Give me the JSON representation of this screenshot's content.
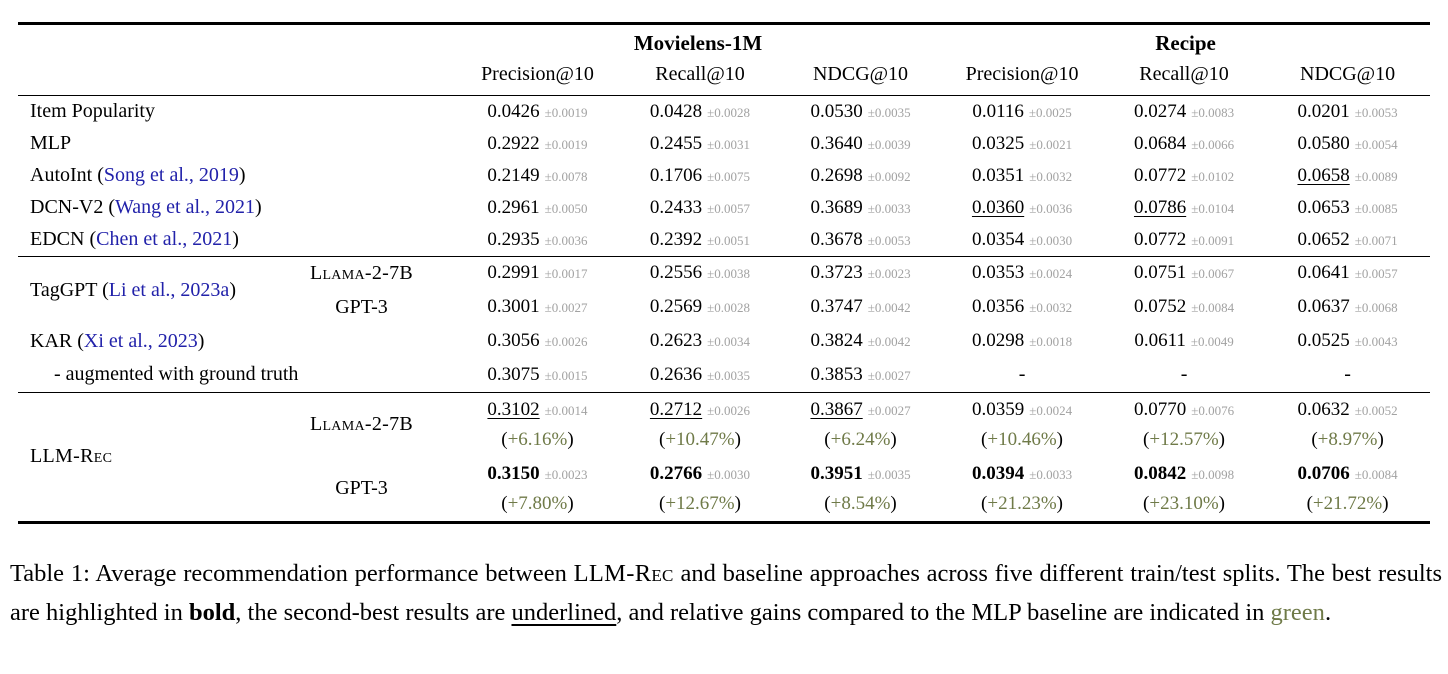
{
  "colors": {
    "citation_blue": "#2222aa",
    "gain_green": "#6f7a48",
    "stddev_gray": "#a2a2a2"
  },
  "table": {
    "dataset_groups": [
      {
        "label": "Movielens-1M",
        "span": 3
      },
      {
        "label": "Recipe",
        "span": 3
      }
    ],
    "metric_headers": [
      "Precision@10",
      "Recall@10",
      "NDCG@10",
      "Precision@10",
      "Recall@10",
      "NDCG@10"
    ],
    "blocks": [
      {
        "rows": [
          {
            "label": [
              {
                "t": "Item Popularity"
              }
            ],
            "cells": [
              {
                "v": "0.0426",
                "pm": "±0.0019"
              },
              {
                "v": "0.0428",
                "pm": "±0.0028"
              },
              {
                "v": "0.0530",
                "pm": "±0.0035"
              },
              {
                "v": "0.0116",
                "pm": "±0.0025"
              },
              {
                "v": "0.0274",
                "pm": "±0.0083"
              },
              {
                "v": "0.0201",
                "pm": "±0.0053"
              }
            ]
          },
          {
            "label": [
              {
                "t": "MLP"
              }
            ],
            "cells": [
              {
                "v": "0.2922",
                "pm": "±0.0019"
              },
              {
                "v": "0.2455",
                "pm": "±0.0031"
              },
              {
                "v": "0.3640",
                "pm": "±0.0039"
              },
              {
                "v": "0.0325",
                "pm": "±0.0021"
              },
              {
                "v": "0.0684",
                "pm": "±0.0066"
              },
              {
                "v": "0.0580",
                "pm": "±0.0054"
              }
            ]
          },
          {
            "label": [
              {
                "t": "AutoInt ("
              },
              {
                "t": "Song et al., 2019",
                "cite": true
              },
              {
                "t": ")"
              }
            ],
            "cells": [
              {
                "v": "0.2149",
                "pm": "±0.0078"
              },
              {
                "v": "0.1706",
                "pm": "±0.0075"
              },
              {
                "v": "0.2698",
                "pm": "±0.0092"
              },
              {
                "v": "0.0351",
                "pm": "±0.0032"
              },
              {
                "v": "0.0772",
                "pm": "±0.0102"
              },
              {
                "v": "0.0658",
                "pm": "±0.0089",
                "u": true
              }
            ]
          },
          {
            "label": [
              {
                "t": "DCN-V2 ("
              },
              {
                "t": "Wang et al., 2021",
                "cite": true
              },
              {
                "t": ")"
              }
            ],
            "cells": [
              {
                "v": "0.2961",
                "pm": "±0.0050"
              },
              {
                "v": "0.2433",
                "pm": "±0.0057"
              },
              {
                "v": "0.3689",
                "pm": "±0.0033"
              },
              {
                "v": "0.0360",
                "pm": "±0.0036",
                "u": true
              },
              {
                "v": "0.0786",
                "pm": "±0.0104",
                "u": true
              },
              {
                "v": "0.0653",
                "pm": "±0.0085"
              }
            ]
          },
          {
            "label": [
              {
                "t": "EDCN ("
              },
              {
                "t": "Chen et al., 2021",
                "cite": true
              },
              {
                "t": ")"
              }
            ],
            "cells": [
              {
                "v": "0.2935",
                "pm": "±0.0036"
              },
              {
                "v": "0.2392",
                "pm": "±0.0051"
              },
              {
                "v": "0.3678",
                "pm": "±0.0053"
              },
              {
                "v": "0.0354",
                "pm": "±0.0030"
              },
              {
                "v": "0.0772",
                "pm": "±0.0091"
              },
              {
                "v": "0.0652",
                "pm": "±0.0071"
              }
            ]
          }
        ]
      },
      {
        "rows": [
          {
            "label": [
              {
                "t": "TagGPT ("
              },
              {
                "t": "Li et al., 2023a",
                "cite": true
              },
              {
                "t": ")"
              }
            ],
            "rowspan": 2,
            "variant": {
              "t": "Llama-2-7B",
              "sc": true
            },
            "cells": [
              {
                "v": "0.2991",
                "pm": "±0.0017"
              },
              {
                "v": "0.2556",
                "pm": "±0.0038"
              },
              {
                "v": "0.3723",
                "pm": "±0.0023"
              },
              {
                "v": "0.0353",
                "pm": "±0.0024"
              },
              {
                "v": "0.0751",
                "pm": "±0.0067"
              },
              {
                "v": "0.0641",
                "pm": "±0.0057"
              }
            ]
          },
          {
            "variant": {
              "t": "GPT-3"
            },
            "cells": [
              {
                "v": "0.3001",
                "pm": "±0.0027"
              },
              {
                "v": "0.2569",
                "pm": "±0.0028"
              },
              {
                "v": "0.3747",
                "pm": "±0.0042"
              },
              {
                "v": "0.0356",
                "pm": "±0.0032"
              },
              {
                "v": "0.0752",
                "pm": "±0.0084"
              },
              {
                "v": "0.0637",
                "pm": "±0.0068"
              }
            ]
          },
          {
            "label": [
              {
                "t": "KAR ("
              },
              {
                "t": "Xi et al., 2023",
                "cite": true
              },
              {
                "t": ")"
              }
            ],
            "cells": [
              {
                "v": "0.3056",
                "pm": "±0.0026"
              },
              {
                "v": "0.2623",
                "pm": "±0.0034"
              },
              {
                "v": "0.3824",
                "pm": "±0.0042"
              },
              {
                "v": "0.0298",
                "pm": "±0.0018"
              },
              {
                "v": "0.0611",
                "pm": "±0.0049"
              },
              {
                "v": "0.0525",
                "pm": "±0.0043"
              }
            ]
          },
          {
            "label": [
              {
                "t": "- augmented with ground truth"
              }
            ],
            "indent": true,
            "cells": [
              {
                "v": "0.3075",
                "pm": "±0.0015"
              },
              {
                "v": "0.2636",
                "pm": "±0.0035"
              },
              {
                "v": "0.3853",
                "pm": "±0.0027"
              },
              {
                "dash": true
              },
              {
                "dash": true
              },
              {
                "dash": true
              }
            ]
          }
        ]
      },
      {
        "rows": [
          {
            "label": [
              {
                "t": "LLM-Rec",
                "sc": true
              }
            ],
            "rowspan": 2,
            "variant": {
              "t": "Llama-2-7B",
              "sc": true
            },
            "cells": [
              {
                "v": "0.3102",
                "pm": "±0.0014",
                "u": true,
                "gain": "+6.16%"
              },
              {
                "v": "0.2712",
                "pm": "±0.0026",
                "u": true,
                "gain": "+10.47%"
              },
              {
                "v": "0.3867",
                "pm": "±0.0027",
                "u": true,
                "gain": "+6.24%"
              },
              {
                "v": "0.0359",
                "pm": "±0.0024",
                "gain": "+10.46%"
              },
              {
                "v": "0.0770",
                "pm": "±0.0076",
                "gain": "+12.57%"
              },
              {
                "v": "0.0632",
                "pm": "±0.0052",
                "gain": "+8.97%"
              }
            ]
          },
          {
            "variant": {
              "t": "GPT-3"
            },
            "cells": [
              {
                "v": "0.3150",
                "pm": "±0.0023",
                "b": true,
                "gain": "+7.80%"
              },
              {
                "v": "0.2766",
                "pm": "±0.0030",
                "b": true,
                "gain": "+12.67%"
              },
              {
                "v": "0.3951",
                "pm": "±0.0035",
                "b": true,
                "gain": "+8.54%"
              },
              {
                "v": "0.0394",
                "pm": "±0.0033",
                "b": true,
                "gain": "+21.23%"
              },
              {
                "v": "0.0842",
                "pm": "±0.0098",
                "b": true,
                "gain": "+23.10%"
              },
              {
                "v": "0.0706",
                "pm": "±0.0084",
                "b": true,
                "gain": "+21.72%"
              }
            ]
          }
        ]
      }
    ]
  },
  "caption": {
    "segments": [
      {
        "t": "Table 1: Average recommendation performance between "
      },
      {
        "t": "LLM-Rec",
        "sc": true
      },
      {
        "t": " and baseline approaches across five different train/test splits. The best results are highlighted in "
      },
      {
        "t": "bold",
        "b": true
      },
      {
        "t": ", the second-best results are "
      },
      {
        "t": "underlined",
        "u": true
      },
      {
        "t": ", and relative gains compared to the MLP baseline are indicated in "
      },
      {
        "t": "green",
        "green": true
      },
      {
        "t": "."
      }
    ]
  }
}
